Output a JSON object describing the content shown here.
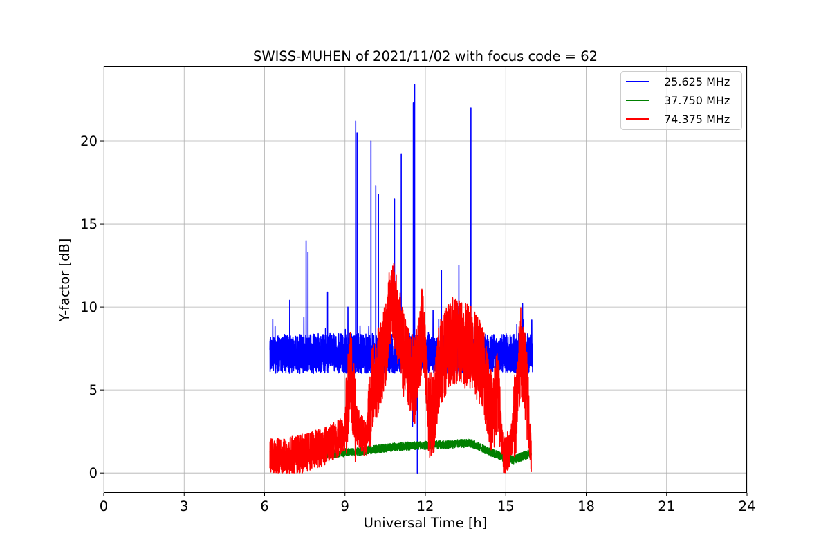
{
  "chart_data": {
    "type": "line",
    "title": "SWISS-MUHEN of 2021/11/02 with focus code = 62",
    "xlabel": "Universal Time [h]",
    "ylabel": "Y-factor [dB]",
    "xlim": [
      0,
      24
    ],
    "ylim": [
      -1.2,
      24.5
    ],
    "xticks": [
      0,
      3,
      6,
      9,
      12,
      15,
      18,
      21,
      24
    ],
    "yticks": [
      0,
      5,
      10,
      15,
      20
    ],
    "grid": true,
    "legend_position": "top-right",
    "series": [
      {
        "name": "25.625 MHz",
        "color": "#0000ff",
        "x_range": [
          6.2,
          16.0
        ],
        "baseline": 7.0,
        "noise_low": 1.0,
        "noise_high": 1.4,
        "peaks": [
          {
            "x": 7.55,
            "y": 14.0
          },
          {
            "x": 7.62,
            "y": 13.3
          },
          {
            "x": 8.35,
            "y": 10.9
          },
          {
            "x": 9.4,
            "y": 21.2
          },
          {
            "x": 9.45,
            "y": 20.5
          },
          {
            "x": 9.97,
            "y": 20.0
          },
          {
            "x": 10.15,
            "y": 17.3
          },
          {
            "x": 10.25,
            "y": 16.8
          },
          {
            "x": 10.85,
            "y": 16.5
          },
          {
            "x": 11.1,
            "y": 19.2
          },
          {
            "x": 11.55,
            "y": 22.3
          },
          {
            "x": 11.6,
            "y": 23.4
          },
          {
            "x": 12.6,
            "y": 12.2
          },
          {
            "x": 13.25,
            "y": 12.5
          },
          {
            "x": 13.7,
            "y": 22.0
          }
        ],
        "dips": [
          {
            "x": 11.7,
            "y": 0.0
          },
          {
            "x": 11.52,
            "y": 2.8
          },
          {
            "x": 12.05,
            "y": 4.8
          }
        ]
      },
      {
        "name": "37.750 MHz",
        "color": "#008000",
        "x_range": [
          6.2,
          15.95
        ],
        "profile": [
          [
            6.2,
            1.1
          ],
          [
            8.0,
            1.1
          ],
          [
            9.5,
            1.3
          ],
          [
            11.0,
            1.6
          ],
          [
            12.5,
            1.7
          ],
          [
            13.7,
            1.8
          ],
          [
            14.8,
            1.0
          ],
          [
            15.3,
            0.8
          ],
          [
            15.95,
            1.2
          ]
        ],
        "noise": 0.55
      },
      {
        "name": "74.375 MHz",
        "color": "#ff0000",
        "x_range": [
          6.2,
          15.95
        ],
        "profile": [
          [
            6.2,
            0.9
          ],
          [
            7.5,
            1.2
          ],
          [
            8.5,
            1.8
          ],
          [
            9.0,
            2.5
          ],
          [
            9.2,
            6.5
          ],
          [
            9.4,
            3.0
          ],
          [
            9.8,
            2.0
          ],
          [
            10.0,
            5.0
          ],
          [
            10.5,
            7.5
          ],
          [
            10.75,
            11.0
          ],
          [
            11.2,
            7.0
          ],
          [
            11.6,
            5.5
          ],
          [
            11.9,
            9.0
          ],
          [
            12.1,
            3.5
          ],
          [
            12.3,
            3.5
          ],
          [
            12.5,
            6.5
          ],
          [
            13.0,
            8.0
          ],
          [
            13.7,
            7.5
          ],
          [
            14.1,
            6.5
          ],
          [
            14.5,
            3.5
          ],
          [
            14.7,
            5.0
          ],
          [
            14.9,
            1.0
          ],
          [
            15.15,
            1.5
          ],
          [
            15.4,
            4.0
          ],
          [
            15.55,
            7.5
          ],
          [
            15.75,
            5.5
          ],
          [
            15.95,
            1.0
          ]
        ],
        "noise": 2.6
      }
    ]
  }
}
